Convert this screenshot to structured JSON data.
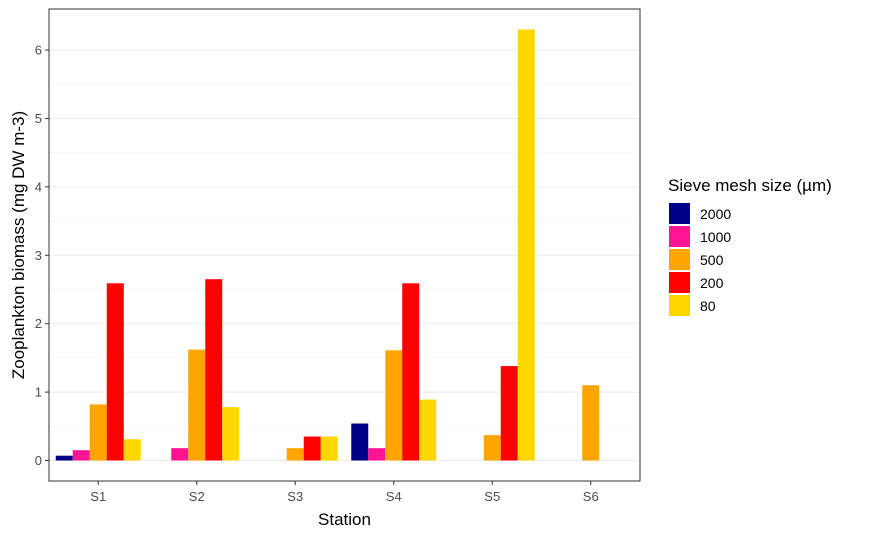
{
  "chart_data": {
    "type": "bar",
    "title": "",
    "xlabel": "Station",
    "ylabel": "Zooplankton biomass (mg DW m-3)",
    "categories": [
      "S1",
      "S2",
      "S3",
      "S4",
      "S5",
      "S6"
    ],
    "ylim": [
      -0.3,
      6.6
    ],
    "yticks": [
      0,
      1,
      2,
      3,
      4,
      5,
      6
    ],
    "grid": true,
    "legend_title": "Sieve mesh size (µm)",
    "legend_position": "right",
    "series": [
      {
        "name": "2000",
        "color": "#00008B",
        "values": [
          0.07,
          0,
          0,
          0.54,
          0,
          0
        ]
      },
      {
        "name": "1000",
        "color": "#FF1493",
        "values": [
          0.15,
          0.18,
          0,
          0.18,
          0,
          0
        ]
      },
      {
        "name": "500",
        "color": "#FFA500",
        "values": [
          0.82,
          1.62,
          0.18,
          1.61,
          0.37,
          1.1
        ]
      },
      {
        "name": "200",
        "color": "#FF0000",
        "values": [
          2.59,
          2.65,
          0.35,
          2.59,
          1.38,
          0
        ]
      },
      {
        "name": "80",
        "color": "#FFD700",
        "values": [
          0.31,
          0.78,
          0.35,
          0.89,
          6.3,
          0
        ]
      }
    ]
  }
}
